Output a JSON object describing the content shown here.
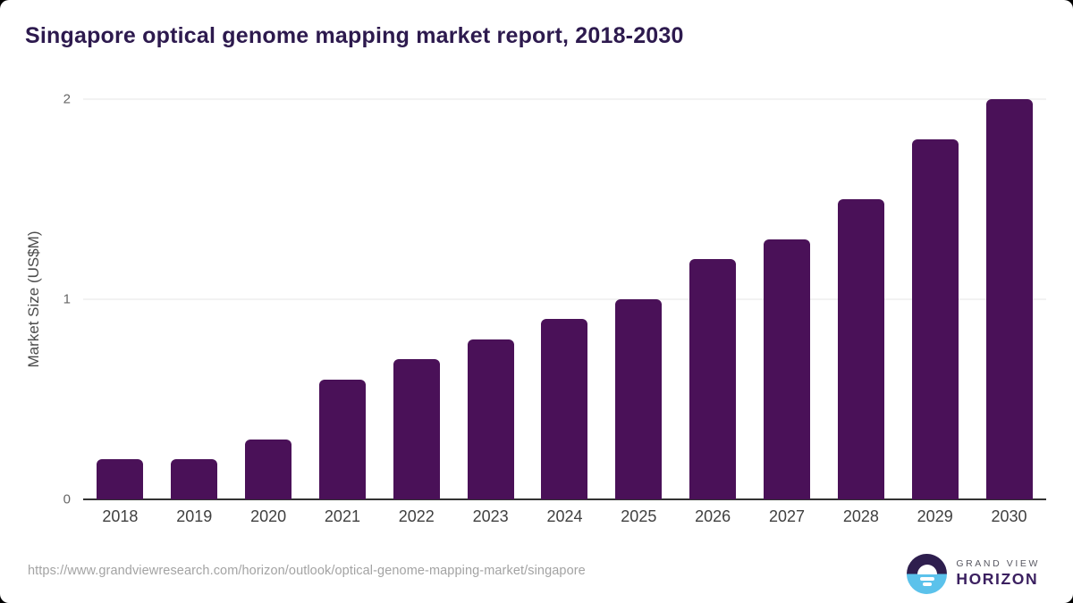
{
  "title": "Singapore optical genome mapping market report, 2018-2030",
  "chart_data": {
    "type": "bar",
    "categories": [
      "2018",
      "2019",
      "2020",
      "2021",
      "2022",
      "2023",
      "2024",
      "2025",
      "2026",
      "2027",
      "2028",
      "2029",
      "2030"
    ],
    "values": [
      0.2,
      0.2,
      0.3,
      0.6,
      0.7,
      0.8,
      0.9,
      1.0,
      1.2,
      1.3,
      1.5,
      1.8,
      2.0
    ],
    "title": "Singapore optical genome mapping market report, 2018-2030",
    "xlabel": "",
    "ylabel": "Market Size (US$M)",
    "ylim": [
      0,
      2
    ],
    "yticks": [
      0,
      1,
      2
    ],
    "grid": true,
    "legend": "none",
    "bar_color": "#4a1158"
  },
  "footer": {
    "url": "https://www.grandviewresearch.com/horizon/outlook/optical-genome-mapping-market/singapore",
    "logo": {
      "line1": "GRAND VIEW",
      "line2": "HORIZON"
    }
  },
  "colors": {
    "title_text": "#2d1a4e",
    "bar": "#4a1158",
    "gridline": "#e4e4e4",
    "axis_line": "#333333",
    "tick_text": "#666666",
    "x_label_text": "#404040",
    "url_text": "#a3a3a3",
    "logo_navy": "#2e1e4e",
    "logo_blue": "#5bc2eb",
    "logo_horizon_text": "#3b2060"
  }
}
